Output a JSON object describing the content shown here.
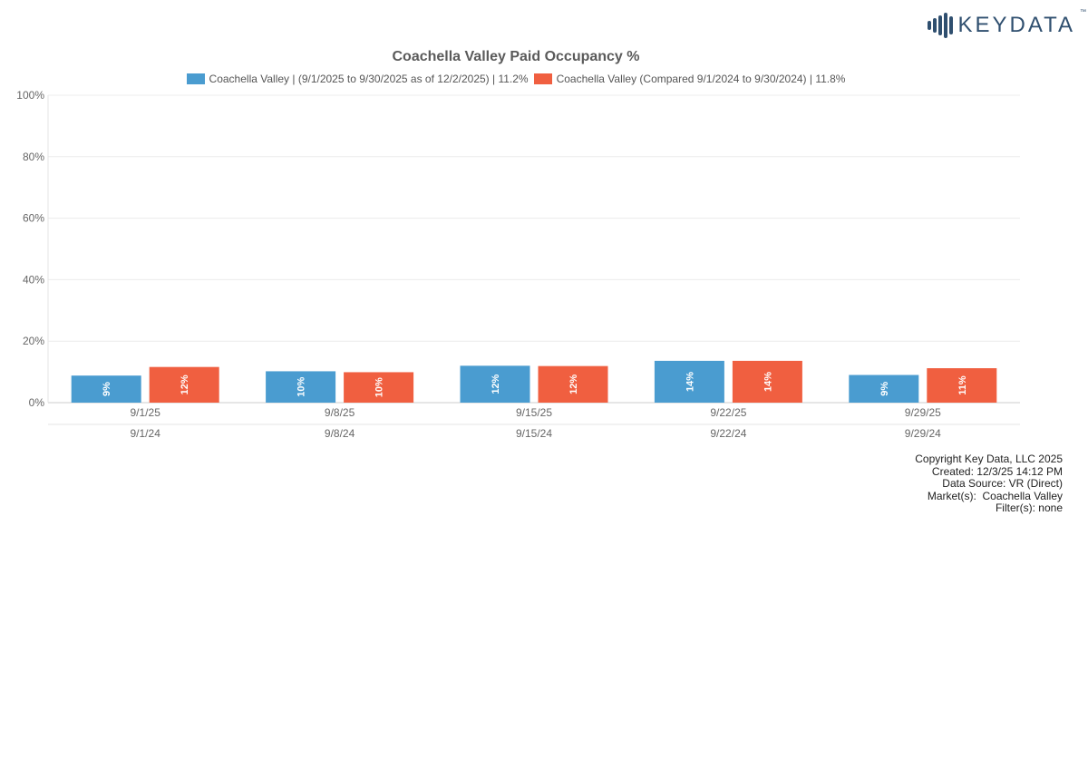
{
  "brand": {
    "name": "KEYDATA",
    "trademark": "™",
    "color": "#2f4f6f"
  },
  "chart_data": {
    "type": "bar",
    "title": "Coachella Valley Paid Occupancy %",
    "ylabel": "",
    "xlabel": "",
    "ylim": [
      0,
      100
    ],
    "y_ticks": [
      "100%",
      "80%",
      "60%",
      "40%",
      "20%",
      "0%"
    ],
    "y_tick_values": [
      100,
      80,
      60,
      40,
      20,
      0
    ],
    "grid": true,
    "legend_position": "top-center",
    "categories": [
      "9/1/25",
      "9/8/25",
      "9/15/25",
      "9/22/25",
      "9/29/25"
    ],
    "secondary_categories": [
      "9/1/24",
      "9/8/24",
      "9/15/24",
      "9/22/24",
      "9/29/24"
    ],
    "series": [
      {
        "name": "Coachella Valley | (9/1/2025 to 9/30/2025 as of 12/2/2025) | 11.2%",
        "color": "#4a9cd0",
        "values": [
          8.8,
          10.2,
          12.0,
          13.6,
          9.0
        ],
        "labels": [
          "9%",
          "10%",
          "12%",
          "14%",
          "9%"
        ]
      },
      {
        "name": "Coachella Valley (Compared 9/1/2024 to 9/30/2024) | 11.8%",
        "color": "#f05f40",
        "values": [
          11.6,
          9.9,
          11.9,
          13.6,
          11.2
        ],
        "labels": [
          "12%",
          "10%",
          "12%",
          "14%",
          "11%"
        ]
      }
    ]
  },
  "footer": {
    "copyright": "Copyright Key Data, LLC 2025",
    "created": "Created: 12/3/25 14:12 PM",
    "source": "Data Source: VR (Direct)",
    "markets": "Market(s):  Coachella Valley",
    "filters": "Filter(s): none"
  }
}
